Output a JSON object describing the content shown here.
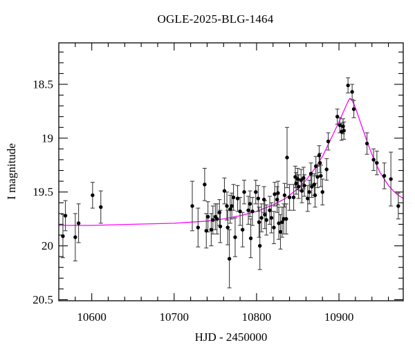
{
  "figure": {
    "title": "OGLE-2025-BLG-1464",
    "x_axis_label": "HJD - 2450000",
    "y_axis_label": "I magnitude"
  },
  "chart_data": {
    "type": "scatter",
    "title": "OGLE-2025-BLG-1464",
    "xlabel": "HJD - 2450000",
    "ylabel": "I magnitude",
    "x_range": [
      10560,
      10978
    ],
    "y_range_mag": [
      18.115,
      20.51
    ],
    "y_axis_inverted": true,
    "grid": false,
    "x_major_ticks": [
      10600,
      10700,
      10800,
      10900
    ],
    "x_major_labels": [
      "10600",
      "10700",
      "10800",
      "10900"
    ],
    "x_minor_step": 20,
    "y_major_ticks": [
      18.5,
      19,
      19.5,
      20,
      20.5
    ],
    "y_major_labels": [
      "18.5",
      "19",
      "19.5",
      "20",
      "20.5"
    ],
    "y_minor_step": 0.1,
    "point_color": "#000000",
    "errorbar_color": "#3d3d3d",
    "model_color": "#ff00ff",
    "frame_color": "#000000",
    "points_format": [
      "hjd_minus_2450000",
      "I_mag",
      "mag_error"
    ],
    "points": [
      [
        10565,
        19.91,
        0.2
      ],
      [
        10568,
        19.72,
        0.14
      ],
      [
        10580,
        19.92,
        0.22
      ],
      [
        10584,
        19.79,
        0.18
      ],
      [
        10601,
        19.53,
        0.12
      ],
      [
        10611,
        19.64,
        0.15
      ],
      [
        10722,
        19.63,
        0.23
      ],
      [
        10729,
        19.83,
        0.18
      ],
      [
        10737,
        19.43,
        0.15
      ],
      [
        10739,
        19.86,
        0.16
      ],
      [
        10741,
        19.73,
        0.14
      ],
      [
        10745,
        19.85,
        0.15
      ],
      [
        10747,
        19.76,
        0.13
      ],
      [
        10750,
        19.73,
        0.12
      ],
      [
        10752,
        19.75,
        0.14
      ],
      [
        10755,
        19.69,
        0.12
      ],
      [
        10756,
        19.82,
        0.15
      ],
      [
        10761,
        19.49,
        0.12
      ],
      [
        10764,
        19.63,
        0.13
      ],
      [
        10765,
        19.83,
        0.16
      ],
      [
        10767,
        20.12,
        0.27
      ],
      [
        10768,
        19.66,
        0.13
      ],
      [
        10770,
        19.63,
        0.12
      ],
      [
        10772,
        19.55,
        0.12
      ],
      [
        10774,
        19.92,
        0.18
      ],
      [
        10777,
        19.56,
        0.12
      ],
      [
        10780,
        19.68,
        0.13
      ],
      [
        10783,
        19.85,
        0.16
      ],
      [
        10785,
        19.5,
        0.11
      ],
      [
        10790,
        19.67,
        0.13
      ],
      [
        10792,
        19.61,
        0.12
      ],
      [
        10793,
        19.93,
        0.18
      ],
      [
        10795,
        19.68,
        0.13
      ],
      [
        10799,
        19.5,
        0.11
      ],
      [
        10802,
        19.56,
        0.12
      ],
      [
        10803,
        19.78,
        0.14
      ],
      [
        10804,
        20.0,
        0.22
      ],
      [
        10806,
        19.74,
        0.13
      ],
      [
        10809,
        19.57,
        0.12
      ],
      [
        10810,
        19.71,
        0.13
      ],
      [
        10812,
        19.76,
        0.14
      ],
      [
        10816,
        19.67,
        0.13
      ],
      [
        10818,
        19.74,
        0.14
      ],
      [
        10821,
        19.83,
        0.15
      ],
      [
        10822,
        19.52,
        0.11
      ],
      [
        10825,
        19.57,
        0.12
      ],
      [
        10826,
        19.51,
        0.11
      ],
      [
        10827,
        19.79,
        0.15
      ],
      [
        10829,
        19.87,
        0.16
      ],
      [
        10831,
        19.78,
        0.14
      ],
      [
        10833,
        19.75,
        0.14
      ],
      [
        10834,
        19.53,
        0.11
      ],
      [
        10836,
        19.75,
        0.14
      ],
      [
        10837,
        19.18,
        0.28
      ],
      [
        10840,
        19.55,
        0.12
      ],
      [
        10845,
        19.55,
        0.12
      ],
      [
        10847,
        19.36,
        0.1
      ],
      [
        10848,
        19.42,
        0.1
      ],
      [
        10850,
        19.38,
        0.1
      ],
      [
        10851,
        19.45,
        0.11
      ],
      [
        10854,
        19.39,
        0.1
      ],
      [
        10855,
        19.49,
        0.11
      ],
      [
        10857,
        19.37,
        0.1
      ],
      [
        10858,
        19.44,
        0.1
      ],
      [
        10862,
        19.56,
        0.12
      ],
      [
        10864,
        19.5,
        0.11
      ],
      [
        10866,
        19.33,
        0.1
      ],
      [
        10867,
        19.45,
        0.1
      ],
      [
        10870,
        19.43,
        0.1
      ],
      [
        10871,
        19.53,
        0.11
      ],
      [
        10872,
        19.26,
        0.09
      ],
      [
        10874,
        19.36,
        0.1
      ],
      [
        10876,
        19.16,
        0.09
      ],
      [
        10877,
        19.23,
        0.09
      ],
      [
        10878,
        19.35,
        0.1
      ],
      [
        10880,
        19.5,
        0.12
      ],
      [
        10885,
        19.29,
        0.1
      ],
      [
        10887,
        19.03,
        0.08
      ],
      [
        10898,
        18.8,
        0.07
      ],
      [
        10901,
        18.88,
        0.07
      ],
      [
        10903,
        18.94,
        0.08
      ],
      [
        10905,
        18.89,
        0.07
      ],
      [
        10906,
        18.93,
        0.08
      ],
      [
        10911,
        18.51,
        0.07
      ],
      [
        10916,
        18.57,
        0.07
      ],
      [
        10918,
        18.73,
        0.08
      ],
      [
        10934,
        19.05,
        0.1
      ],
      [
        10942,
        19.2,
        0.1
      ],
      [
        10946,
        19.23,
        0.11
      ],
      [
        10955,
        19.35,
        0.12
      ],
      [
        10963,
        19.38,
        0.25
      ],
      [
        10972,
        19.63,
        0.12
      ]
    ],
    "model_curve": [
      [
        10560,
        19.81
      ],
      [
        10600,
        19.81
      ],
      [
        10650,
        19.8
      ],
      [
        10700,
        19.79
      ],
      [
        10720,
        19.78
      ],
      [
        10740,
        19.77
      ],
      [
        10760,
        19.75
      ],
      [
        10780,
        19.72
      ],
      [
        10800,
        19.68
      ],
      [
        10820,
        19.62
      ],
      [
        10835,
        19.56
      ],
      [
        10850,
        19.47
      ],
      [
        10860,
        19.39
      ],
      [
        10870,
        19.29
      ],
      [
        10880,
        19.17
      ],
      [
        10890,
        19.01
      ],
      [
        10895,
        18.93
      ],
      [
        10900,
        18.85
      ],
      [
        10904,
        18.78
      ],
      [
        10908,
        18.71
      ],
      [
        10911,
        18.66
      ],
      [
        10913,
        18.63
      ],
      [
        10915,
        18.64
      ],
      [
        10918,
        18.68
      ],
      [
        10921,
        18.74
      ],
      [
        10925,
        18.83
      ],
      [
        10930,
        18.94
      ],
      [
        10935,
        19.05
      ],
      [
        10940,
        19.15
      ],
      [
        10945,
        19.24
      ],
      [
        10950,
        19.32
      ],
      [
        10955,
        19.38
      ],
      [
        10960,
        19.44
      ],
      [
        10965,
        19.48
      ],
      [
        10970,
        19.52
      ],
      [
        10978,
        19.56
      ]
    ]
  }
}
